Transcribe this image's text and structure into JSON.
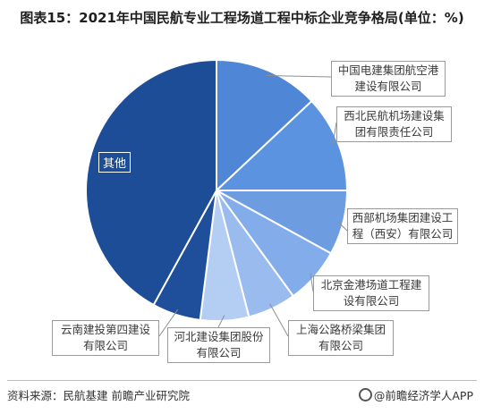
{
  "chart_data": {
    "type": "pie",
    "title": "图表15：2021年中国民航专业工程场道工程中标企业竞争格局(单位：%)",
    "slices": [
      {
        "label": "中国电建集团航空港建设有限公司",
        "value": 13,
        "color": "#4f86d6"
      },
      {
        "label": "西北民航机场建设集团有限责任公司",
        "value": 12,
        "color": "#5b93e0"
      },
      {
        "label": "西部机场集团建设工程（西安）有限公司",
        "value": 8,
        "color": "#6d9de0"
      },
      {
        "label": "北京金港场道工程建设有限公司",
        "value": 7,
        "color": "#83acea"
      },
      {
        "label": "上海公路桥梁集团有限公司",
        "value": 6,
        "color": "#99bbee"
      },
      {
        "label": "河北建设集团股份有限公司",
        "value": 6,
        "color": "#b3cdf3"
      },
      {
        "label": "云南建投第四建设有限公司",
        "value": 6,
        "color": "#1f4f9a"
      },
      {
        "label": "其他",
        "value": 42,
        "color": "#1d4d96"
      }
    ],
    "start_angle_deg": 0,
    "direction": "clockwise"
  },
  "footer": {
    "source": "资料来源：民航基建  前瞻产业研究院",
    "brand": "@前瞻经济学人APP"
  }
}
